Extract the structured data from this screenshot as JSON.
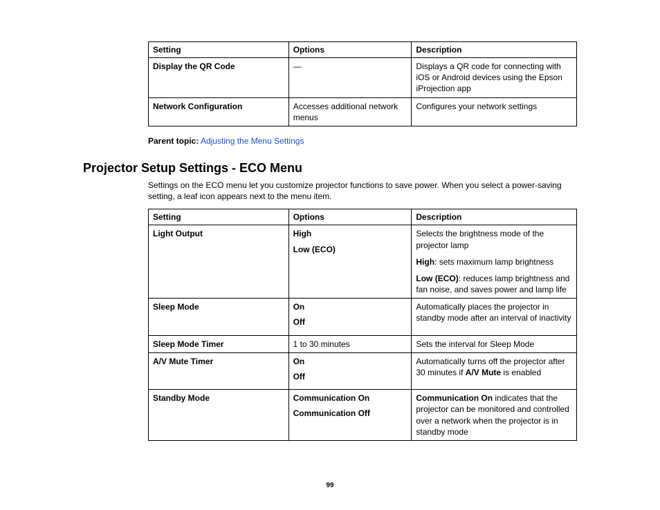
{
  "table1": {
    "headers": {
      "setting": "Setting",
      "options": "Options",
      "description": "Description"
    },
    "rows": [
      {
        "setting": "Display the QR Code",
        "options": "—",
        "description": "Displays a QR code for connecting with iOS or Android devices using the Epson iProjection app"
      },
      {
        "setting": "Network Configuration",
        "options": "Accesses additional network menus",
        "description": "Configures your network settings"
      }
    ]
  },
  "parent_topic": {
    "label": "Parent topic:",
    "link_text": "Adjusting the Menu Settings"
  },
  "heading": "Projector Setup Settings - ECO Menu",
  "intro": "Settings on the ECO menu let you customize projector functions to save power. When you select a power-saving setting, a leaf icon appears next to the menu item.",
  "table2": {
    "headers": {
      "setting": "Setting",
      "options": "Options",
      "description": "Description"
    },
    "rows": {
      "light_output": {
        "setting": "Light Output",
        "opt1": "High",
        "opt2": "Low (ECO)",
        "desc1": "Selects the brightness mode of the projector lamp",
        "desc2_bold": "High",
        "desc2_rest": ": sets maximum lamp brightness",
        "desc3_bold": "Low (ECO)",
        "desc3_rest": ": reduces lamp brightness and fan noise, and saves power and lamp life"
      },
      "sleep_mode": {
        "setting": "Sleep Mode",
        "opt1": "On",
        "opt2": "Off",
        "desc": "Automatically places the projector in standby mode after an interval of inactivity"
      },
      "sleep_mode_timer": {
        "setting": "Sleep Mode Timer",
        "options": "1 to 30 minutes",
        "desc": "Sets the interval for Sleep Mode"
      },
      "av_mute_timer": {
        "setting": "A/V Mute Timer",
        "opt1": "On",
        "opt2": "Off",
        "desc_pre": "Automatically turns off the projector after 30 minutes if ",
        "desc_bold": "A/V Mute",
        "desc_post": " is enabled"
      },
      "standby_mode": {
        "setting": "Standby Mode",
        "opt1": "Communication On",
        "opt2": "Communication Off",
        "desc_bold": "Communication On",
        "desc_rest": " indicates that the projector can be monitored and controlled over a network when the projector is in standby mode"
      }
    }
  },
  "page_number": "99",
  "colors": {
    "link": "#1a4fc9",
    "border": "#000000",
    "text": "#000000",
    "background": "#ffffff"
  }
}
